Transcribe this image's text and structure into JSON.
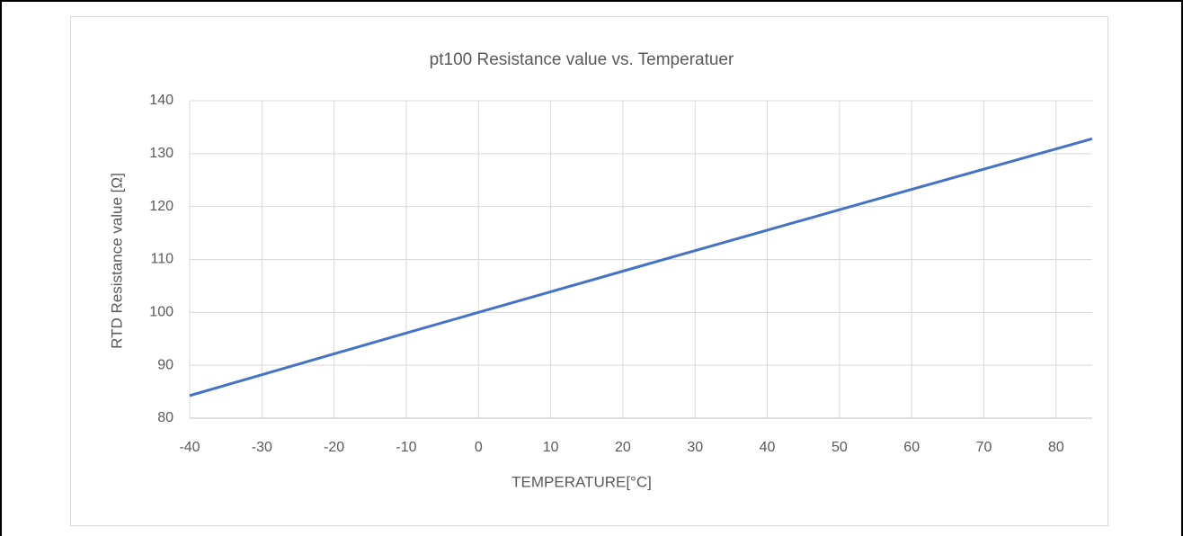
{
  "chart_data": {
    "type": "line",
    "title": "pt100 Resistance value  vs. Temperatuer",
    "x_label": "TEMPERATURE[°C]",
    "y_label": "RTD Resistance value [Ω]",
    "x": [
      -40,
      -30,
      -20,
      -10,
      0,
      10,
      20,
      30,
      40,
      50,
      60,
      70,
      80,
      85
    ],
    "series": [
      {
        "color": "#4472c4",
        "values": [
          84.27,
          88.22,
          92.16,
          96.09,
          100,
          103.9,
          107.79,
          111.67,
          115.54,
          119.4,
          123.24,
          127.08,
          130.9,
          132.8
        ]
      }
    ],
    "xlim": [
      -40,
      85
    ],
    "xticks": [
      -40,
      -30,
      -20,
      -10,
      0,
      10,
      20,
      30,
      40,
      50,
      60,
      70,
      80
    ],
    "ylim": [
      80,
      140
    ],
    "yticks": [
      80,
      90,
      100,
      110,
      120,
      130,
      140
    ],
    "grid": true
  }
}
